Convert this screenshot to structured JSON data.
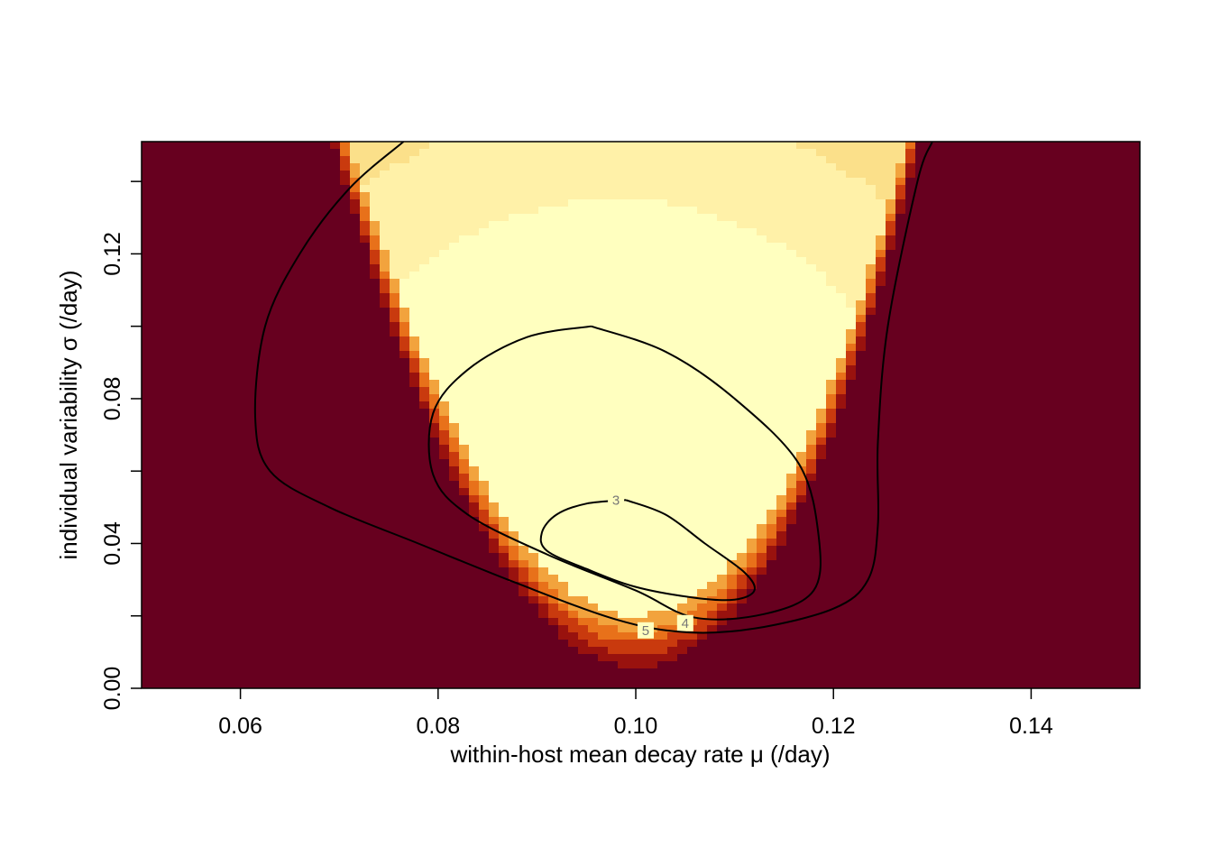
{
  "chart_data": {
    "type": "heatmap",
    "title": "",
    "xlabel": "within-host mean decay rate μ (/day)",
    "ylabel": "individual variability σ (/day)",
    "xlim": [
      0.05,
      0.151
    ],
    "ylim": [
      0.0,
      0.151
    ],
    "xticks": [
      {
        "value": 0.06,
        "label": "0.06"
      },
      {
        "value": 0.08,
        "label": "0.08"
      },
      {
        "value": 0.1,
        "label": "0.10"
      },
      {
        "value": 0.12,
        "label": "0.12"
      },
      {
        "value": 0.14,
        "label": "0.14"
      }
    ],
    "yticks": [
      {
        "value": 0.0,
        "label": "0.00"
      },
      {
        "value": 0.02,
        "label": ""
      },
      {
        "value": 0.04,
        "label": "0.04"
      },
      {
        "value": 0.06,
        "label": ""
      },
      {
        "value": 0.08,
        "label": "0.08"
      },
      {
        "value": 0.1,
        "label": ""
      },
      {
        "value": 0.12,
        "label": "0.12"
      },
      {
        "value": 0.14,
        "label": ""
      }
    ],
    "palette": [
      "#FFFFBF",
      "#FFF1A8",
      "#FBE08A",
      "#F6CA6A",
      "#F2A33D",
      "#E8711A",
      "#C93A0E",
      "#99120E",
      "#67001F"
    ],
    "contours": [
      {
        "level": 3,
        "label": "3",
        "label_at": [
          0.098,
          0.052
        ],
        "points": [
          [
            0.099,
            0.052
          ],
          [
            0.095,
            0.051
          ],
          [
            0.092,
            0.048
          ],
          [
            0.0905,
            0.043
          ],
          [
            0.091,
            0.038
          ],
          [
            0.095,
            0.033
          ],
          [
            0.1,
            0.028
          ],
          [
            0.106,
            0.025
          ],
          [
            0.11,
            0.0245
          ],
          [
            0.112,
            0.027
          ],
          [
            0.111,
            0.032
          ],
          [
            0.107,
            0.04
          ],
          [
            0.103,
            0.048
          ],
          [
            0.099,
            0.052
          ]
        ]
      },
      {
        "level": 4,
        "label": "4",
        "label_at": [
          0.105,
          0.018
        ],
        "points": [
          [
            0.0955,
            0.1
          ],
          [
            0.089,
            0.097
          ],
          [
            0.083,
            0.088
          ],
          [
            0.0795,
            0.076
          ],
          [
            0.0795,
            0.059
          ],
          [
            0.083,
            0.048
          ],
          [
            0.091,
            0.037
          ],
          [
            0.1,
            0.027
          ],
          [
            0.106,
            0.0195
          ],
          [
            0.113,
            0.0205
          ],
          [
            0.118,
            0.027
          ],
          [
            0.1185,
            0.042
          ],
          [
            0.1165,
            0.062
          ],
          [
            0.11,
            0.08
          ],
          [
            0.103,
            0.093
          ],
          [
            0.0955,
            0.1
          ]
        ]
      },
      {
        "level": 5,
        "label": "5",
        "label_at": [
          0.101,
          0.016
        ],
        "points": [
          [
            0.0765,
            0.151
          ],
          [
            0.071,
            0.138
          ],
          [
            0.066,
            0.12
          ],
          [
            0.0625,
            0.1
          ],
          [
            0.0615,
            0.075
          ],
          [
            0.063,
            0.06
          ],
          [
            0.069,
            0.05
          ],
          [
            0.078,
            0.04
          ],
          [
            0.088,
            0.029
          ],
          [
            0.098,
            0.019
          ],
          [
            0.105,
            0.0155
          ],
          [
            0.112,
            0.0165
          ],
          [
            0.12,
            0.022
          ],
          [
            0.1235,
            0.03
          ],
          [
            0.1245,
            0.045
          ],
          [
            0.1245,
            0.068
          ],
          [
            0.1255,
            0.1
          ],
          [
            0.1285,
            0.14
          ],
          [
            0.13,
            0.151
          ]
        ]
      }
    ],
    "grid": false,
    "legend": "none"
  }
}
